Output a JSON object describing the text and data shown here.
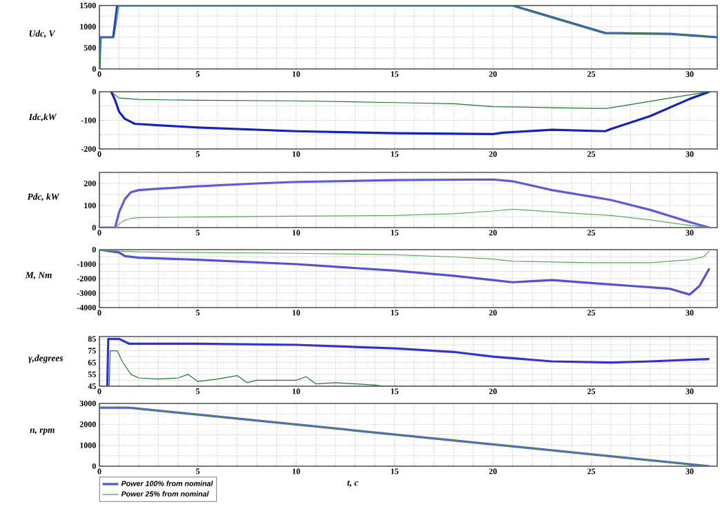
{
  "chart_data": [
    {
      "type": "line",
      "ylabel": "Udc, V",
      "xlim": [
        0,
        31.4
      ],
      "ylim": [
        0,
        1500
      ],
      "xticks": [
        0,
        5,
        10,
        15,
        20,
        25,
        30
      ],
      "yticks": [
        0,
        500,
        1000,
        1500
      ],
      "grid": true,
      "series": [
        {
          "color": "#2040d0",
          "x": [
            0,
            0.05,
            0.7,
            0.9,
            21,
            25.7,
            29,
            30.5,
            31.4
          ],
          "values": [
            0,
            750,
            750,
            1500,
            1500,
            850,
            830,
            780,
            750
          ]
        },
        {
          "color": "#40a040",
          "x": [
            0,
            0.05,
            0.75,
            1.0,
            21,
            25.7,
            29,
            30.5,
            31.4
          ],
          "values": [
            0,
            750,
            750,
            1500,
            1500,
            850,
            830,
            780,
            750
          ]
        }
      ]
    },
    {
      "type": "line",
      "ylabel": "Idc,kW",
      "xlim": [
        0,
        31.4
      ],
      "ylim": [
        -200,
        0
      ],
      "xticks": [
        0,
        5,
        10,
        15,
        20,
        25,
        30
      ],
      "yticks": [
        -200,
        -100,
        0
      ],
      "grid": true,
      "series": [
        {
          "color": "#1020d0",
          "x": [
            0.6,
            0.8,
            1,
            1.3,
            1.8,
            3,
            5,
            10,
            15,
            20,
            20.5,
            23,
            25.7,
            26,
            28,
            30,
            31
          ],
          "values": [
            0,
            -30,
            -70,
            -95,
            -112,
            -117,
            -125,
            -138,
            -145,
            -148,
            -143,
            -133,
            -138,
            -130,
            -85,
            -25,
            0
          ]
        },
        {
          "color": "#1c7a2c",
          "x": [
            0.6,
            1,
            2,
            5,
            10,
            15,
            18,
            20,
            25,
            25.8,
            27,
            29,
            30.5,
            31
          ],
          "values": [
            0,
            -22,
            -27,
            -30,
            -32,
            -38,
            -42,
            -52,
            -58,
            -58,
            -45,
            -22,
            -5,
            0
          ]
        }
      ]
    },
    {
      "type": "line",
      "ylabel": "Pdc, kW",
      "xlim": [
        0,
        31.4
      ],
      "ylim": [
        0,
        250
      ],
      "xticks": [
        0,
        5,
        10,
        15,
        20,
        25,
        30
      ],
      "yticks": [
        0,
        100,
        200
      ],
      "grid": true,
      "series": [
        {
          "color": "#5a5ae6",
          "x": [
            0,
            0.8,
            1,
            1.3,
            1.6,
            2,
            3,
            5,
            8,
            10,
            15,
            20,
            21,
            23,
            25,
            26,
            28,
            30,
            31
          ],
          "values": [
            0,
            0,
            70,
            130,
            160,
            170,
            176,
            187,
            200,
            207,
            215,
            218,
            210,
            170,
            140,
            125,
            80,
            25,
            0
          ]
        },
        {
          "color": "#5aac5a",
          "x": [
            0.8,
            1.2,
            1.6,
            2,
            5,
            10,
            15,
            18,
            20,
            21,
            22,
            24,
            26,
            28,
            30,
            31
          ],
          "values": [
            0,
            30,
            42,
            45,
            48,
            52,
            55,
            63,
            75,
            83,
            78,
            65,
            55,
            35,
            10,
            0
          ]
        }
      ]
    },
    {
      "type": "line",
      "ylabel": "M, Nm",
      "xlim": [
        0,
        31.4
      ],
      "ylim": [
        -4000,
        0
      ],
      "xticks": [
        0,
        5,
        10,
        15,
        20,
        25,
        30
      ],
      "yticks": [
        -4000,
        -3000,
        -2000,
        -1000,
        0
      ],
      "grid": true,
      "series": [
        {
          "color": "#5050e0",
          "x": [
            0,
            1,
            1.3,
            2,
            5,
            10,
            15,
            18,
            20,
            21,
            23,
            25,
            27,
            29,
            30,
            30.5,
            31
          ],
          "values": [
            0,
            -200,
            -450,
            -550,
            -700,
            -1000,
            -1450,
            -1800,
            -2100,
            -2250,
            -2100,
            -2300,
            -2500,
            -2700,
            -3100,
            -2500,
            -1300
          ]
        },
        {
          "color": "#5aac5a",
          "x": [
            0,
            1,
            2,
            5,
            10,
            15,
            18,
            20,
            21,
            25,
            28,
            30,
            30.7,
            31
          ],
          "values": [
            0,
            -100,
            -150,
            -200,
            -250,
            -350,
            -500,
            -650,
            -800,
            -900,
            -900,
            -700,
            -500,
            -100
          ]
        }
      ]
    },
    {
      "type": "line",
      "ylabel": "γ,degrees",
      "xlim": [
        0,
        31.4
      ],
      "ylim": [
        45,
        87
      ],
      "xticks": [
        0,
        5,
        10,
        15,
        20,
        25,
        30
      ],
      "yticks": [
        45,
        55,
        65,
        75,
        85
      ],
      "grid": true,
      "series": [
        {
          "color": "#3030e0",
          "x": [
            0.4,
            0.45,
            1.0,
            1.5,
            5,
            10,
            15,
            18,
            20,
            23,
            26,
            28,
            31
          ],
          "values": [
            45,
            85,
            85,
            81,
            81,
            80,
            77,
            74,
            70,
            66,
            65,
            66,
            68
          ]
        },
        {
          "color": "#1c7a2c",
          "x": [
            0,
            0.5,
            0.55,
            0.9,
            1.2,
            1.6,
            2,
            3,
            4,
            4.5,
            5,
            6,
            7,
            7.5,
            8,
            10,
            10.5,
            11,
            12,
            13,
            14,
            14.5,
            31
          ],
          "values": [
            45,
            45,
            75,
            75,
            65,
            55,
            52,
            51,
            52,
            55,
            49,
            51,
            54,
            48,
            50,
            50,
            53,
            47,
            48,
            47,
            46,
            45,
            45
          ]
        }
      ]
    },
    {
      "type": "line",
      "ylabel": "n, rpm",
      "xlabel": "t, c",
      "xlim": [
        0,
        31.4
      ],
      "ylim": [
        0,
        3000
      ],
      "xticks": [
        0,
        5,
        10,
        15,
        20,
        25,
        30
      ],
      "yticks": [
        0,
        1000,
        2000,
        3000
      ],
      "grid": true,
      "legend": "bottom left",
      "series": [
        {
          "name": "Power 100% from nominal",
          "color": "#5050e0",
          "x": [
            0,
            1.5,
            31
          ],
          "values": [
            2800,
            2800,
            0
          ]
        },
        {
          "name": "Power 25% from nominal",
          "color": "#40a040",
          "x": [
            0,
            1.5,
            31
          ],
          "values": [
            2800,
            2800,
            0
          ]
        }
      ]
    }
  ]
}
